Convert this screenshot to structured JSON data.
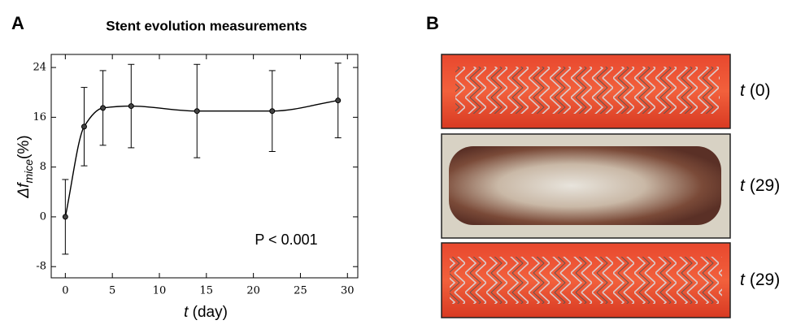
{
  "panel_a": {
    "label": "A"
  },
  "panel_b": {
    "label": "B",
    "images": [
      {
        "t": "t",
        "label": "(0)"
      },
      {
        "t": "t",
        "label": "(29)"
      },
      {
        "t": "t",
        "label": "(29)"
      }
    ]
  },
  "chart_data": {
    "type": "line",
    "title": "Stent evolution measurements",
    "xlabel_var": "t",
    "xlabel_unit": "(day)",
    "ylabel_var": "Δf",
    "ylabel_sub": "mice",
    "ylabel_unit": "(%)",
    "annotation": "P < 0.001",
    "x": [
      0,
      2,
      4,
      7,
      14,
      22,
      29
    ],
    "series": [
      {
        "color": "#000000",
        "values": [
          0,
          14.5,
          17.5,
          17.8,
          17,
          17,
          18.7
        ],
        "errors": [
          6,
          6.3,
          6,
          6.7,
          7.5,
          6.5,
          6
        ]
      }
    ],
    "xlim": [
      -1.5,
      31.1
    ],
    "xticks": [
      0,
      5,
      10,
      15,
      20,
      25,
      30
    ],
    "ylim": [
      -9.8,
      26.1
    ],
    "yticks": [
      -8,
      0,
      8,
      16,
      24
    ]
  }
}
